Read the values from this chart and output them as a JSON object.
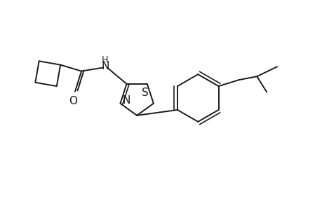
{
  "bg_color": "#ffffff",
  "line_color": "#1a1a1a",
  "line_width": 1.4,
  "font_size": 10,
  "figsize": [
    4.6,
    3.0
  ],
  "dpi": 100,
  "xlim": [
    0,
    9.2
  ],
  "ylim": [
    0,
    6.0
  ]
}
